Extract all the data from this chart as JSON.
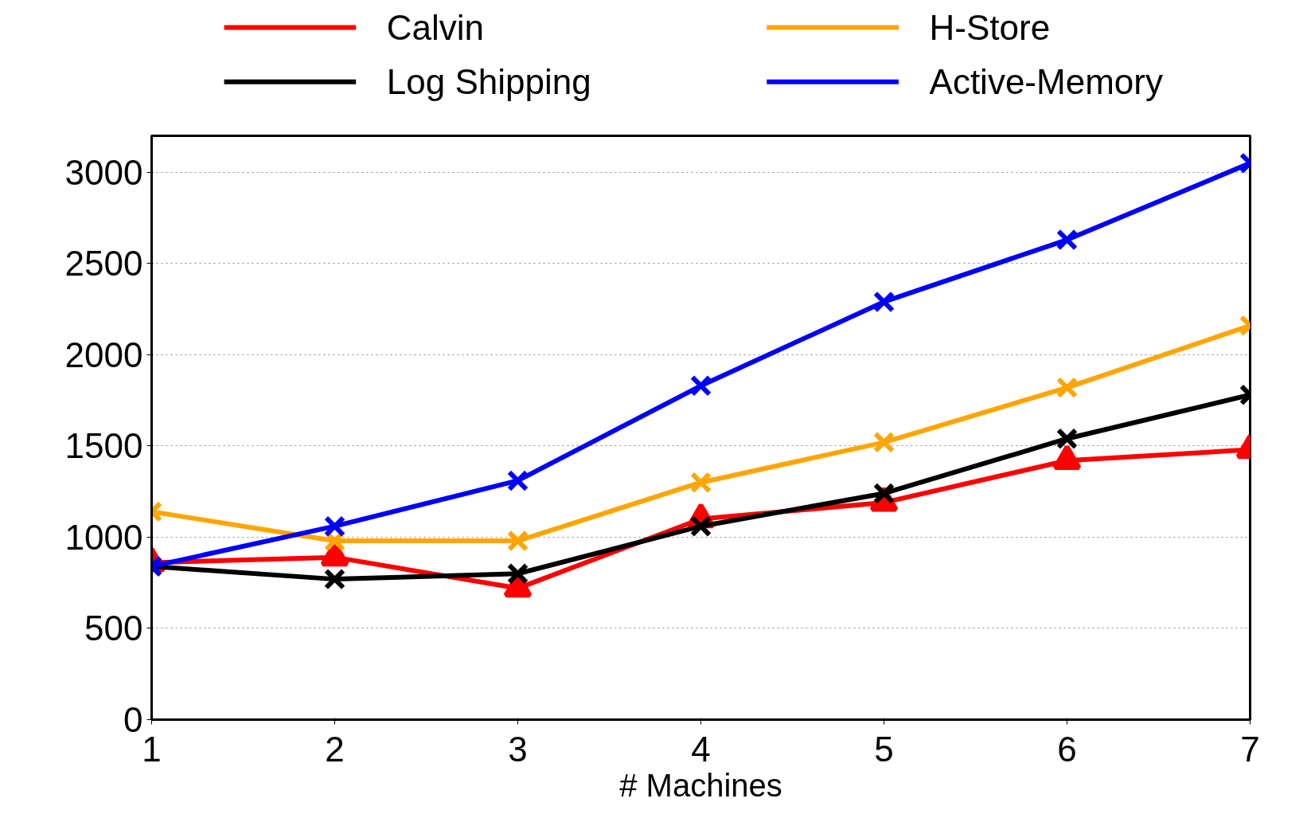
{
  "chart_data": {
    "type": "line",
    "xlabel": "# Machines",
    "x": [
      1,
      2,
      3,
      4,
      5,
      6,
      7
    ],
    "series": [
      {
        "name": "Calvin",
        "color": "#ff0000",
        "marker": "triangle",
        "values": [
          860,
          890,
          720,
          1100,
          1190,
          1420,
          1480
        ]
      },
      {
        "name": "Log Shipping",
        "color": "#000000",
        "marker": "cross",
        "values": [
          840,
          770,
          800,
          1060,
          1240,
          1540,
          1780
        ]
      },
      {
        "name": "H-Store",
        "color": "#ffa500",
        "marker": "cross",
        "values": [
          1140,
          980,
          980,
          1300,
          1520,
          1820,
          2160
        ]
      },
      {
        "name": "Active-Memory",
        "color": "#0000ff",
        "marker": "cross",
        "values": [
          840,
          1060,
          1310,
          1830,
          2290,
          2630,
          3050
        ]
      }
    ],
    "xlim": [
      1,
      7
    ],
    "ylim": [
      0,
      3200
    ],
    "xticks": [
      1,
      2,
      3,
      4,
      5,
      6,
      7
    ],
    "yticks": [
      0,
      500,
      1000,
      1500,
      2000,
      2500,
      3000
    ],
    "grid": "y",
    "legend": "top",
    "line_style": "solid"
  }
}
